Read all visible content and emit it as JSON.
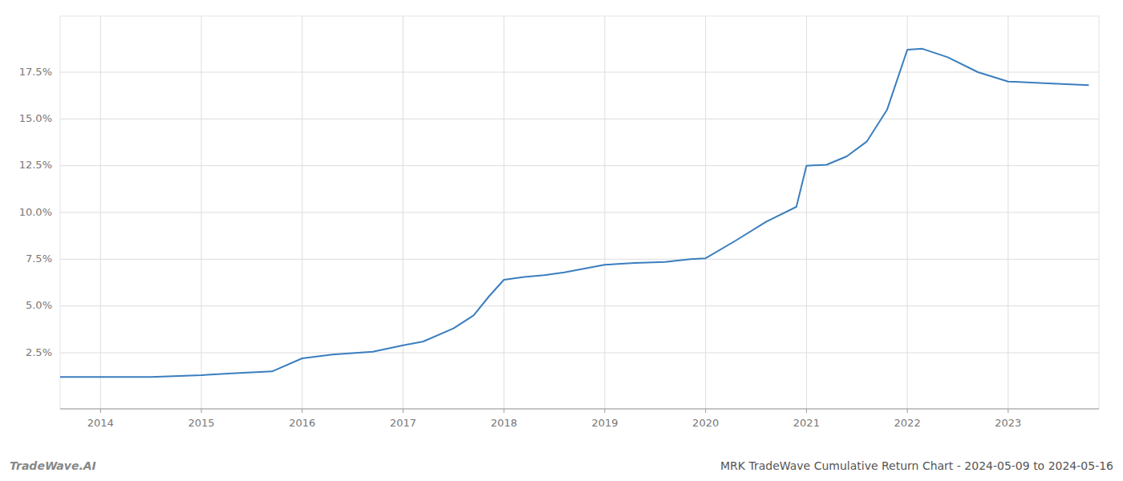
{
  "chart_data": {
    "type": "line",
    "title": "MRK TradeWave Cumulative Return Chart - 2024-05-09 to 2024-05-16",
    "annotations": [
      "TradeWave.AI"
    ],
    "color": "#3a7ebf",
    "grid": true,
    "x": [
      2013.6,
      2014.0,
      2014.5,
      2015.0,
      2015.3,
      2015.7,
      2016.0,
      2016.3,
      2016.7,
      2017.0,
      2017.2,
      2017.5,
      2017.7,
      2017.85,
      2018.0,
      2018.2,
      2018.4,
      2018.6,
      2018.8,
      2019.0,
      2019.3,
      2019.6,
      2019.85,
      2020.0,
      2020.3,
      2020.6,
      2020.9,
      2021.0,
      2021.2,
      2021.4,
      2021.6,
      2021.8,
      2022.0,
      2022.15,
      2022.4,
      2022.7,
      2023.0,
      2023.4,
      2023.8
    ],
    "values": [
      1.2,
      1.2,
      1.2,
      1.3,
      1.4,
      1.5,
      2.2,
      2.4,
      2.55,
      2.9,
      3.1,
      3.8,
      4.5,
      5.5,
      6.4,
      6.55,
      6.65,
      6.8,
      7.0,
      7.2,
      7.3,
      7.35,
      7.5,
      7.55,
      8.5,
      9.5,
      10.3,
      12.5,
      12.55,
      13.0,
      13.8,
      15.5,
      18.7,
      18.75,
      18.3,
      17.5,
      17.0,
      16.9,
      16.8
    ],
    "xlim": [
      2013.6,
      2023.9
    ],
    "ylim": [
      -0.5,
      20.5
    ],
    "xticks": [
      2014,
      2015,
      2016,
      2017,
      2018,
      2019,
      2020,
      2021,
      2022,
      2023
    ],
    "yticks": [
      {
        "value": 2.5,
        "label": "2.5%"
      },
      {
        "value": 5.0,
        "label": "5.0%"
      },
      {
        "value": 7.5,
        "label": "7.5%"
      },
      {
        "value": 10.0,
        "label": "10.0%"
      },
      {
        "value": 12.5,
        "label": "12.5%"
      },
      {
        "value": 15.0,
        "label": "15.0%"
      },
      {
        "value": 17.5,
        "label": "17.5%"
      }
    ]
  }
}
